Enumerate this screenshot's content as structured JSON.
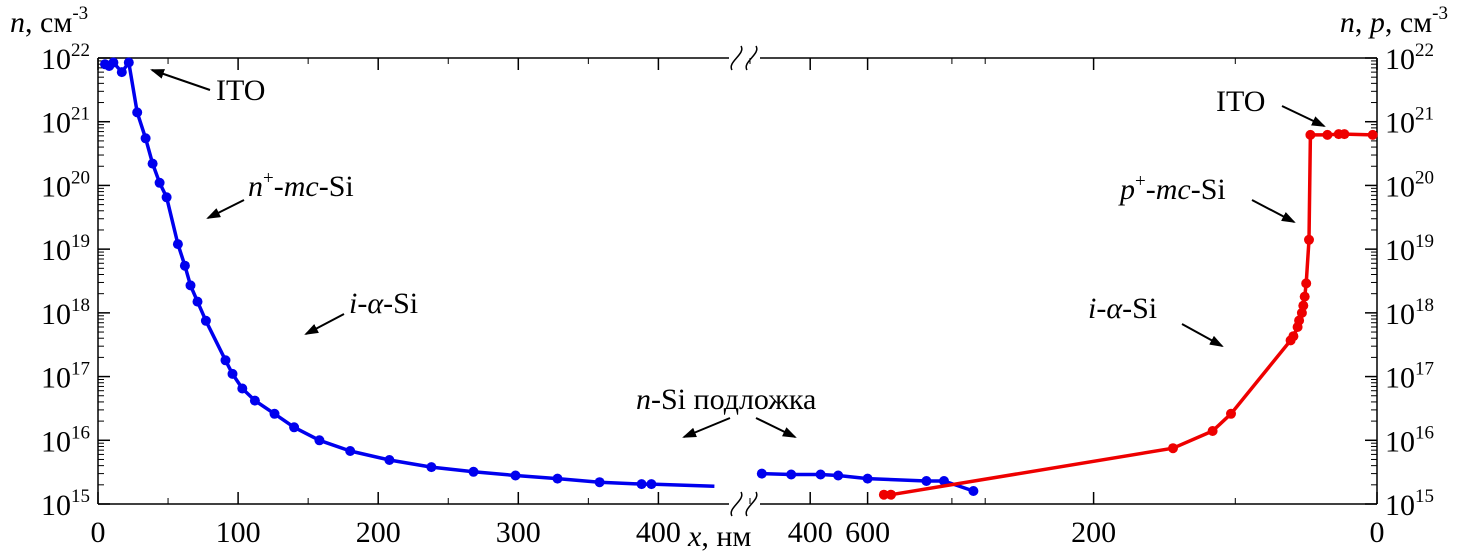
{
  "chart_data": {
    "type": "line",
    "y_scale": "log",
    "ylim": [
      1000000000000000.0,
      1e+22
    ],
    "y_ticks": [
      {
        "base": "10",
        "exp": "15"
      },
      {
        "base": "10",
        "exp": "16"
      },
      {
        "base": "10",
        "exp": "17"
      },
      {
        "base": "10",
        "exp": "18"
      },
      {
        "base": "10",
        "exp": "19"
      },
      {
        "base": "10",
        "exp": "20"
      },
      {
        "base": "10",
        "exp": "21"
      },
      {
        "base": "10",
        "exp": "22"
      }
    ],
    "y_label_left": {
      "main": "n, см",
      "sup": "-3"
    },
    "y_label_right": {
      "main": "n, p, см",
      "sup": "-3"
    },
    "x_label": "x, нм",
    "x_tick_labels": [
      "0",
      "100",
      "200",
      "300",
      "400",
      "600",
      "400",
      "200",
      "0"
    ],
    "grid": false,
    "axis_break": "x",
    "series": [
      {
        "color": "#0000ee",
        "points": [
          [
            5,
            8e+21
          ],
          [
            8,
            7.5e+21
          ],
          [
            11,
            8.5e+21
          ],
          [
            17,
            6e+21
          ],
          [
            22,
            8.5e+21
          ],
          [
            28,
            1.4e+21
          ],
          [
            34,
            5.5e+20
          ],
          [
            39,
            2.2e+20
          ],
          [
            44,
            1.1e+20
          ],
          [
            49,
            6.5e+19
          ],
          [
            57,
            1.2e+19
          ],
          [
            62,
            5.5e+18
          ],
          [
            66,
            2.7e+18
          ],
          [
            71,
            1.5e+18
          ],
          [
            77,
            7.5e+17
          ],
          [
            91,
            1.8e+17
          ],
          [
            96,
            1.1e+17
          ],
          [
            103,
            6.5e+16
          ],
          [
            112,
            4.2e+16
          ],
          [
            126,
            2.6e+16
          ],
          [
            140,
            1.6e+16
          ],
          [
            158,
            1e+16
          ],
          [
            180,
            6800000000000000.0
          ],
          [
            208,
            4900000000000000.0
          ],
          [
            238,
            3800000000000000.0
          ],
          [
            268,
            3200000000000000.0
          ],
          [
            298,
            2800000000000000.0
          ],
          [
            328,
            2500000000000000.0
          ],
          [
            358,
            2200000000000000.0
          ],
          [
            388,
            2050000000000000.0
          ],
          [
            395,
            2050000000000000.0
          ],
          [
            440,
            1900000000000000.0
          ]
        ],
        "points_after_break": [
          [
            510,
            3000000000000000.0
          ],
          [
            535,
            2900000000000000.0
          ],
          [
            560,
            2900000000000000.0
          ],
          [
            575,
            2800000000000000.0
          ],
          [
            600,
            2500000000000000.0
          ],
          [
            650,
            2300000000000000.0
          ],
          [
            665,
            2300000000000000.0
          ],
          [
            690,
            1600000000000000.0
          ]
        ]
      },
      {
        "color": "#ee0000",
        "points": [
          [
            348,
            1400000000000000.0
          ],
          [
            343,
            1400000000000000.0
          ],
          [
            144,
            7500000000000000.0
          ],
          [
            116,
            1.4e+16
          ],
          [
            103,
            2.6e+16
          ],
          [
            61,
            3.7e+17
          ],
          [
            59,
            4.3e+17
          ],
          [
            56,
            6e+17
          ],
          [
            55,
            7.6e+17
          ],
          [
            53,
            1e+18
          ],
          [
            52,
            1.3e+18
          ],
          [
            51,
            1.8e+18
          ],
          [
            50,
            2.9e+18
          ],
          [
            48,
            1.4e+19
          ],
          [
            47,
            6.2e+20
          ],
          [
            35,
            6.2e+20
          ],
          [
            27,
            6.4e+20
          ],
          [
            23,
            6.4e+20
          ],
          [
            3,
            6.2e+20
          ]
        ]
      }
    ],
    "annotations": [
      {
        "parts": [
          {
            "t": "ITO"
          }
        ]
      },
      {
        "parts": [
          {
            "t": "n",
            "i": true
          },
          {
            "t": "+",
            "sup": true
          },
          {
            "t": "-"
          },
          {
            "t": "mc",
            "i": true
          },
          {
            "t": "-Si"
          }
        ]
      },
      {
        "parts": [
          {
            "t": "i",
            "i": true
          },
          {
            "t": "-"
          },
          {
            "t": "α",
            "i": true
          },
          {
            "t": "-Si"
          }
        ]
      },
      {
        "parts": [
          {
            "t": "n",
            "i": true
          },
          {
            "t": "-Si подложка"
          }
        ]
      },
      {
        "parts": [
          {
            "t": "ITO"
          }
        ]
      },
      {
        "parts": [
          {
            "t": "p",
            "i": true
          },
          {
            "t": "+",
            "sup": true
          },
          {
            "t": "-"
          },
          {
            "t": "mc",
            "i": true
          },
          {
            "t": "-Si"
          }
        ]
      },
      {
        "parts": [
          {
            "t": "i",
            "i": true
          },
          {
            "t": "-"
          },
          {
            "t": "α",
            "i": true
          },
          {
            "t": "-Si"
          }
        ]
      }
    ]
  }
}
